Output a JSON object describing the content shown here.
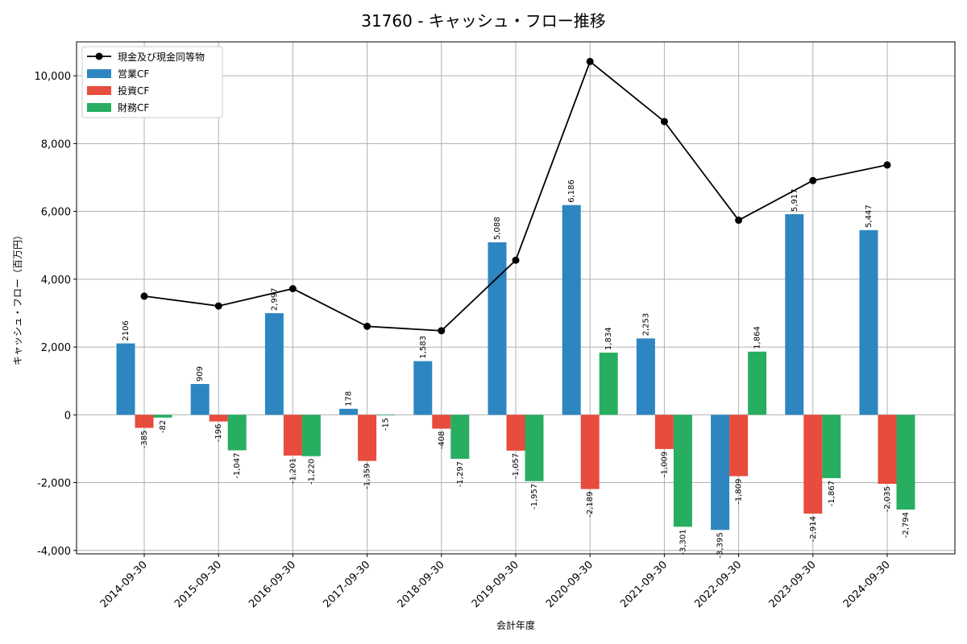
{
  "chart_data": {
    "type": "bar",
    "title": "31760 - キャッシュ・フロー推移",
    "xlabel": "会計年度",
    "ylabel": "キャッシュ・フロー（百万円）",
    "ylim": [
      -4100,
      11000
    ],
    "yticks": [
      -4000,
      -2000,
      0,
      2000,
      4000,
      6000,
      8000,
      10000
    ],
    "ytick_labels": [
      "-4,000",
      "-2,000",
      "0",
      "2,000",
      "4,000",
      "6,000",
      "8,000",
      "10,000"
    ],
    "grid": true,
    "legend_position": "top-left",
    "categories": [
      "2014-09-30",
      "2015-09-30",
      "2016-09-30",
      "2017-09-30",
      "2018-09-30",
      "2019-09-30",
      "2020-09-30",
      "2021-09-30",
      "2022-09-30",
      "2023-09-30",
      "2024-09-30"
    ],
    "series": [
      {
        "name": "営業CF",
        "kind": "bar",
        "color": "#2e86c1",
        "values": [
          2106,
          909,
          2997,
          178,
          1583,
          5088,
          6186,
          2253,
          -3395,
          5917,
          5447
        ],
        "labels": [
          "2106",
          "909",
          "2,997",
          "178",
          "1,583",
          "5,088",
          "6,186",
          "2,253",
          "-3,395",
          "5,917",
          "5,447"
        ]
      },
      {
        "name": "投資CF",
        "kind": "bar",
        "color": "#e74c3c",
        "values": [
          -385,
          -196,
          -1201,
          -1359,
          -408,
          -1057,
          -2189,
          -1009,
          -1809,
          -2914,
          -2035
        ],
        "labels": [
          "-385",
          "-196",
          "-1,201",
          "-1,359",
          "-408",
          "-1,057",
          "-2,189",
          "-1,009",
          "-1,809",
          "-2,914",
          "-2,035"
        ]
      },
      {
        "name": "財務CF",
        "kind": "bar",
        "color": "#27ae60",
        "values": [
          -82,
          -1047,
          -1220,
          -15,
          -1297,
          -1957,
          1834,
          -3301,
          1864,
          -1867,
          -2794
        ],
        "labels": [
          "-82",
          "-1,047",
          "-1,220",
          "-15",
          "-1,297",
          "-1,957",
          "1,834",
          "-3,301",
          "1,864",
          "-1,867",
          "-2,794"
        ]
      },
      {
        "name": "現金及び現金同等物",
        "kind": "line",
        "color": "#000000",
        "values": [
          3500,
          3210,
          3720,
          2610,
          2480,
          4560,
          10420,
          8650,
          5740,
          6910,
          7370
        ]
      }
    ]
  }
}
